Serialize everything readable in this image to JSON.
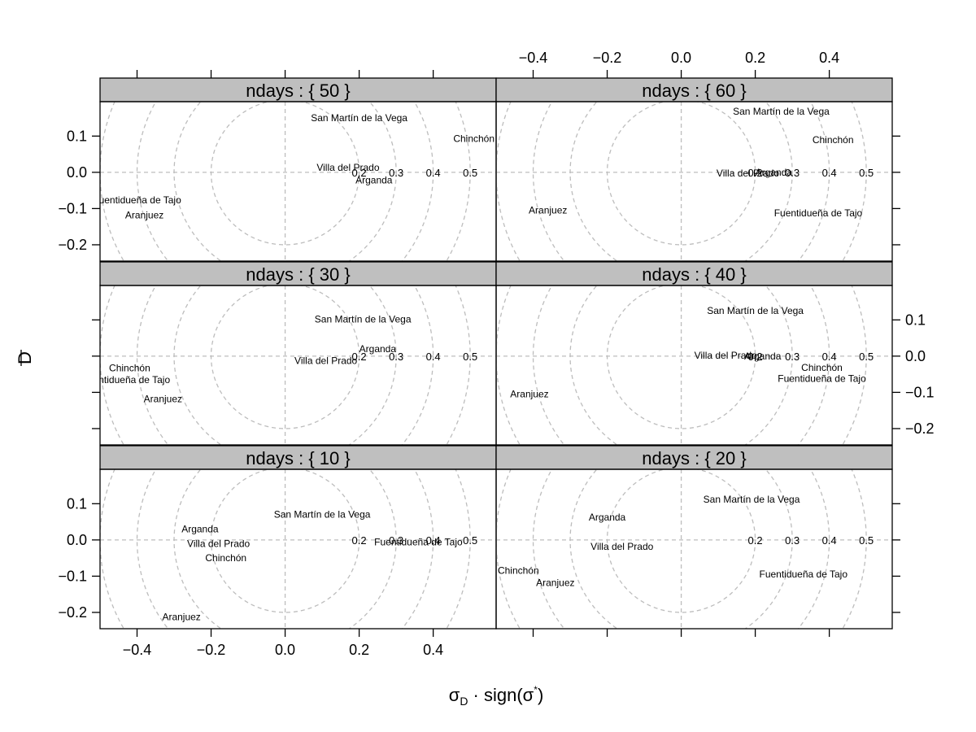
{
  "chart_data": {
    "type": "scatter",
    "xlabel_main": "σ",
    "xlabel_sub": "D",
    "xlabel_rest": " · sign(σ",
    "xlabel_sup": "*",
    "xlabel_close": ")",
    "ylabel": "D",
    "xlim": [
      -0.5,
      0.57
    ],
    "ylim": [
      -0.245,
      0.195
    ],
    "x_ticks": [
      -0.4,
      -0.2,
      0.0,
      0.2,
      0.4
    ],
    "x_tick_labels": [
      "−0.4",
      "−0.2",
      "0.0",
      "0.2",
      "0.4"
    ],
    "y_ticks": [
      0.1,
      0.0,
      -0.1,
      -0.2
    ],
    "y_tick_labels": [
      "0.1",
      "0.0",
      "−0.1",
      "−0.2"
    ],
    "circle_center": [
      0.0,
      0.0
    ],
    "circle_radii": [
      0.2,
      0.3,
      0.4,
      0.5
    ],
    "circle_labels": [
      "0.2",
      "0.3",
      "0.4",
      "0.5"
    ],
    "panels": [
      {
        "strip": "ndays : { 50 }",
        "points": [
          {
            "label": "San Martín de la Vega",
            "x": 0.2,
            "y": 0.15
          },
          {
            "label": "Chinchón",
            "x": 0.51,
            "y": 0.093
          },
          {
            "label": "Villa del Prado",
            "x": 0.17,
            "y": 0.013
          },
          {
            "label": "Arganda",
            "x": 0.24,
            "y": -0.022
          },
          {
            "label": "Fuentidueña de Tajo",
            "x": -0.4,
            "y": -0.077
          },
          {
            "label": "Aranjuez",
            "x": -0.38,
            "y": -0.118
          }
        ]
      },
      {
        "strip": "ndays : { 60 }",
        "points": [
          {
            "label": "San Martín de la Vega",
            "x": 0.27,
            "y": 0.168
          },
          {
            "label": "Chinchón",
            "x": 0.41,
            "y": 0.09
          },
          {
            "label": "Villa del Prado",
            "x": 0.18,
            "y": -0.002
          },
          {
            "label": "Arganda",
            "x": 0.25,
            "y": 0.0
          },
          {
            "label": "Fuentidueña de Tajo",
            "x": 0.37,
            "y": -0.113
          },
          {
            "label": "Aranjuez",
            "x": -0.36,
            "y": -0.105
          }
        ]
      },
      {
        "strip": "ndays : { 30 }",
        "points": [
          {
            "label": "San Martín de la Vega",
            "x": 0.21,
            "y": 0.102
          },
          {
            "label": "Arganda",
            "x": 0.25,
            "y": 0.02
          },
          {
            "label": "Villa del Prado",
            "x": 0.11,
            "y": -0.013
          },
          {
            "label": "Chinchón",
            "x": -0.42,
            "y": -0.033
          },
          {
            "label": "Fuentidueña de Tajo",
            "x": -0.43,
            "y": -0.065
          },
          {
            "label": "Aranjuez",
            "x": -0.33,
            "y": -0.118
          }
        ]
      },
      {
        "strip": "ndays : { 40 }",
        "points": [
          {
            "label": "San Martín de la Vega",
            "x": 0.2,
            "y": 0.125
          },
          {
            "label": "Villa del Prado",
            "x": 0.12,
            "y": 0.002
          },
          {
            "label": "Arganda",
            "x": 0.22,
            "y": 0.0
          },
          {
            "label": "Chinchón",
            "x": 0.38,
            "y": -0.032
          },
          {
            "label": "Fuentidueña de Tajo",
            "x": 0.38,
            "y": -0.062
          },
          {
            "label": "Aranjuez",
            "x": -0.41,
            "y": -0.105
          }
        ]
      },
      {
        "strip": "ndays : { 10 }",
        "points": [
          {
            "label": "San Martín de la Vega",
            "x": 0.1,
            "y": 0.07
          },
          {
            "label": "Arganda",
            "x": -0.23,
            "y": 0.03
          },
          {
            "label": "Villa del Prado",
            "x": -0.18,
            "y": -0.01
          },
          {
            "label": "Chinchón",
            "x": -0.16,
            "y": -0.05
          },
          {
            "label": "Fuentidueña de Tajo",
            "x": 0.36,
            "y": -0.006
          },
          {
            "label": "Aranjuez",
            "x": -0.28,
            "y": -0.213
          }
        ]
      },
      {
        "strip": "ndays : { 20 }",
        "points": [
          {
            "label": "San Martín de la Vega",
            "x": 0.19,
            "y": 0.112
          },
          {
            "label": "Arganda",
            "x": -0.2,
            "y": 0.062
          },
          {
            "label": "Villa del Prado",
            "x": -0.16,
            "y": -0.018
          },
          {
            "label": "Chinchón",
            "x": -0.44,
            "y": -0.085
          },
          {
            "label": "Aranjuez",
            "x": -0.34,
            "y": -0.118
          },
          {
            "label": "Fuentidueña de Tajo",
            "x": 0.33,
            "y": -0.095
          }
        ]
      }
    ]
  }
}
